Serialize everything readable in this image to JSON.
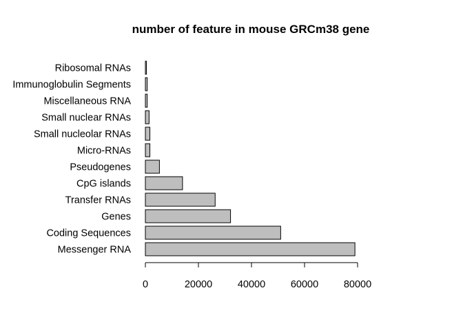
{
  "chart_data": {
    "type": "bar",
    "orientation": "horizontal",
    "title": "number of feature in mouse GRCm38 gene",
    "xlabel": "",
    "ylabel": "",
    "categories": [
      "Messenger RNA",
      "Coding Sequences",
      "Genes",
      "Transfer RNAs",
      "CpG islands",
      "Pseudogenes",
      "Micro-RNAs",
      "Small nucleolar RNAs",
      "Small nuclear RNAs",
      "Miscellaneous RNA",
      "Immunoglobulin Segments",
      "Ribosomal RNAs"
    ],
    "values": [
      79000,
      51000,
      32100,
      26300,
      14000,
      5300,
      1700,
      1700,
      1400,
      700,
      700,
      400
    ],
    "xlim": [
      0,
      80000
    ],
    "xticks": [
      0,
      20000,
      40000,
      60000,
      80000
    ],
    "grid": false,
    "legend": "none",
    "bar_color": "#bebebe"
  }
}
